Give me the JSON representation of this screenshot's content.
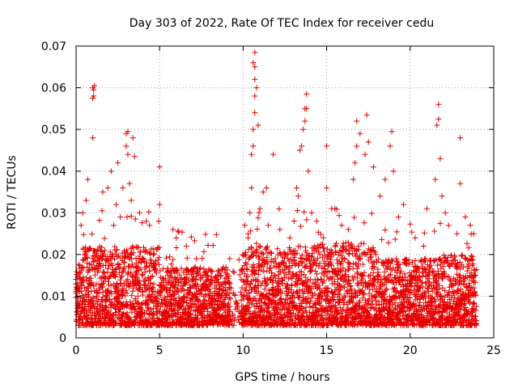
{
  "chart_data": {
    "type": "scatter",
    "title": "Day 303 of 2022, Rate Of TEC Index for receiver cedu",
    "xlabel": "GPS time / hours",
    "ylabel": "ROTI / TECUs",
    "xlim": [
      0,
      25
    ],
    "ylim": [
      0,
      0.07
    ],
    "xticks": [
      0,
      5,
      10,
      15,
      20,
      25
    ],
    "yticks": [
      0,
      0.01,
      0.02,
      0.03,
      0.04,
      0.05,
      0.06,
      0.07
    ],
    "ytick_labels": [
      "0",
      "0.01",
      "0.02",
      "0.03",
      "0.04",
      "0.05",
      "0.06",
      "0.07"
    ],
    "grid": true,
    "marker": "+",
    "color": "#e60000",
    "series": [
      {
        "name": "",
        "points": [
          [
            1.0,
            0.06
          ],
          [
            1.05,
            0.058
          ],
          [
            1.1,
            0.0605
          ],
          [
            1.0,
            0.0575
          ],
          [
            1.05,
            0.0595
          ],
          [
            1.0,
            0.048
          ],
          [
            0.6,
            0.033
          ],
          [
            0.4,
            0.03
          ],
          [
            0.7,
            0.038
          ],
          [
            0.3,
            0.027
          ],
          [
            1.6,
            0.035
          ],
          [
            1.9,
            0.036
          ],
          [
            2.1,
            0.04
          ],
          [
            2.5,
            0.042
          ],
          [
            2.8,
            0.036
          ],
          [
            3.0,
            0.049
          ],
          [
            3.1,
            0.0495
          ],
          [
            3.0,
            0.046
          ],
          [
            3.1,
            0.044
          ],
          [
            3.4,
            0.048
          ],
          [
            3.5,
            0.0435
          ],
          [
            3.2,
            0.037
          ],
          [
            2.4,
            0.032
          ],
          [
            3.3,
            0.033
          ],
          [
            3.8,
            0.03
          ],
          [
            4.2,
            0.028
          ],
          [
            4.4,
            0.027
          ],
          [
            5.0,
            0.041
          ],
          [
            5.0,
            0.032
          ],
          [
            5.8,
            0.026
          ],
          [
            6.0,
            0.024
          ],
          [
            6.6,
            0.022
          ],
          [
            7.2,
            0.019
          ],
          [
            7.8,
            0.016
          ],
          [
            8.5,
            0.016
          ],
          [
            9.2,
            0.019
          ],
          [
            9.4,
            0.016
          ],
          [
            10.1,
            0.027
          ],
          [
            10.3,
            0.024
          ],
          [
            10.4,
            0.03
          ],
          [
            10.5,
            0.036
          ],
          [
            10.5,
            0.044
          ],
          [
            10.6,
            0.046
          ],
          [
            10.6,
            0.05
          ],
          [
            10.7,
            0.054
          ],
          [
            10.7,
            0.058
          ],
          [
            10.7,
            0.062
          ],
          [
            10.6,
            0.066
          ],
          [
            10.7,
            0.0685
          ],
          [
            10.7,
            0.065
          ],
          [
            10.8,
            0.06
          ],
          [
            10.9,
            0.051
          ],
          [
            11.0,
            0.031
          ],
          [
            11.2,
            0.035
          ],
          [
            11.4,
            0.036
          ],
          [
            11.5,
            0.027
          ],
          [
            11.8,
            0.044
          ],
          [
            12.2,
            0.026
          ],
          [
            12.8,
            0.024
          ],
          [
            13.2,
            0.036
          ],
          [
            13.3,
            0.034
          ],
          [
            13.4,
            0.045
          ],
          [
            13.5,
            0.046
          ],
          [
            13.6,
            0.05
          ],
          [
            13.7,
            0.052
          ],
          [
            13.7,
            0.055
          ],
          [
            13.8,
            0.0585
          ],
          [
            13.8,
            0.055
          ],
          [
            13.9,
            0.04
          ],
          [
            14.1,
            0.03
          ],
          [
            14.4,
            0.028
          ],
          [
            14.8,
            0.024
          ],
          [
            15.0,
            0.036
          ],
          [
            15.0,
            0.046
          ],
          [
            15.3,
            0.031
          ],
          [
            15.5,
            0.031
          ],
          [
            15.9,
            0.027
          ],
          [
            16.3,
            0.026
          ],
          [
            16.6,
            0.038
          ],
          [
            16.7,
            0.042
          ],
          [
            16.8,
            0.046
          ],
          [
            16.8,
            0.052
          ],
          [
            17.0,
            0.049
          ],
          [
            17.3,
            0.044
          ],
          [
            17.4,
            0.0535
          ],
          [
            17.5,
            0.047
          ],
          [
            17.8,
            0.041
          ],
          [
            18.2,
            0.034
          ],
          [
            18.5,
            0.038
          ],
          [
            18.8,
            0.046
          ],
          [
            18.9,
            0.0495
          ],
          [
            19.0,
            0.04
          ],
          [
            19.3,
            0.029
          ],
          [
            19.6,
            0.032
          ],
          [
            20.3,
            0.024
          ],
          [
            20.8,
            0.022
          ],
          [
            21.0,
            0.031
          ],
          [
            21.5,
            0.038
          ],
          [
            21.6,
            0.051
          ],
          [
            21.7,
            0.0525
          ],
          [
            21.7,
            0.056
          ],
          [
            21.8,
            0.043
          ],
          [
            21.9,
            0.034
          ],
          [
            22.1,
            0.03
          ],
          [
            22.3,
            0.027
          ],
          [
            22.8,
            0.025
          ],
          [
            23.0,
            0.048
          ],
          [
            23.0,
            0.037
          ],
          [
            23.3,
            0.029
          ],
          [
            23.6,
            0.027
          ],
          [
            23.8,
            0.025
          ]
        ]
      }
    ]
  }
}
